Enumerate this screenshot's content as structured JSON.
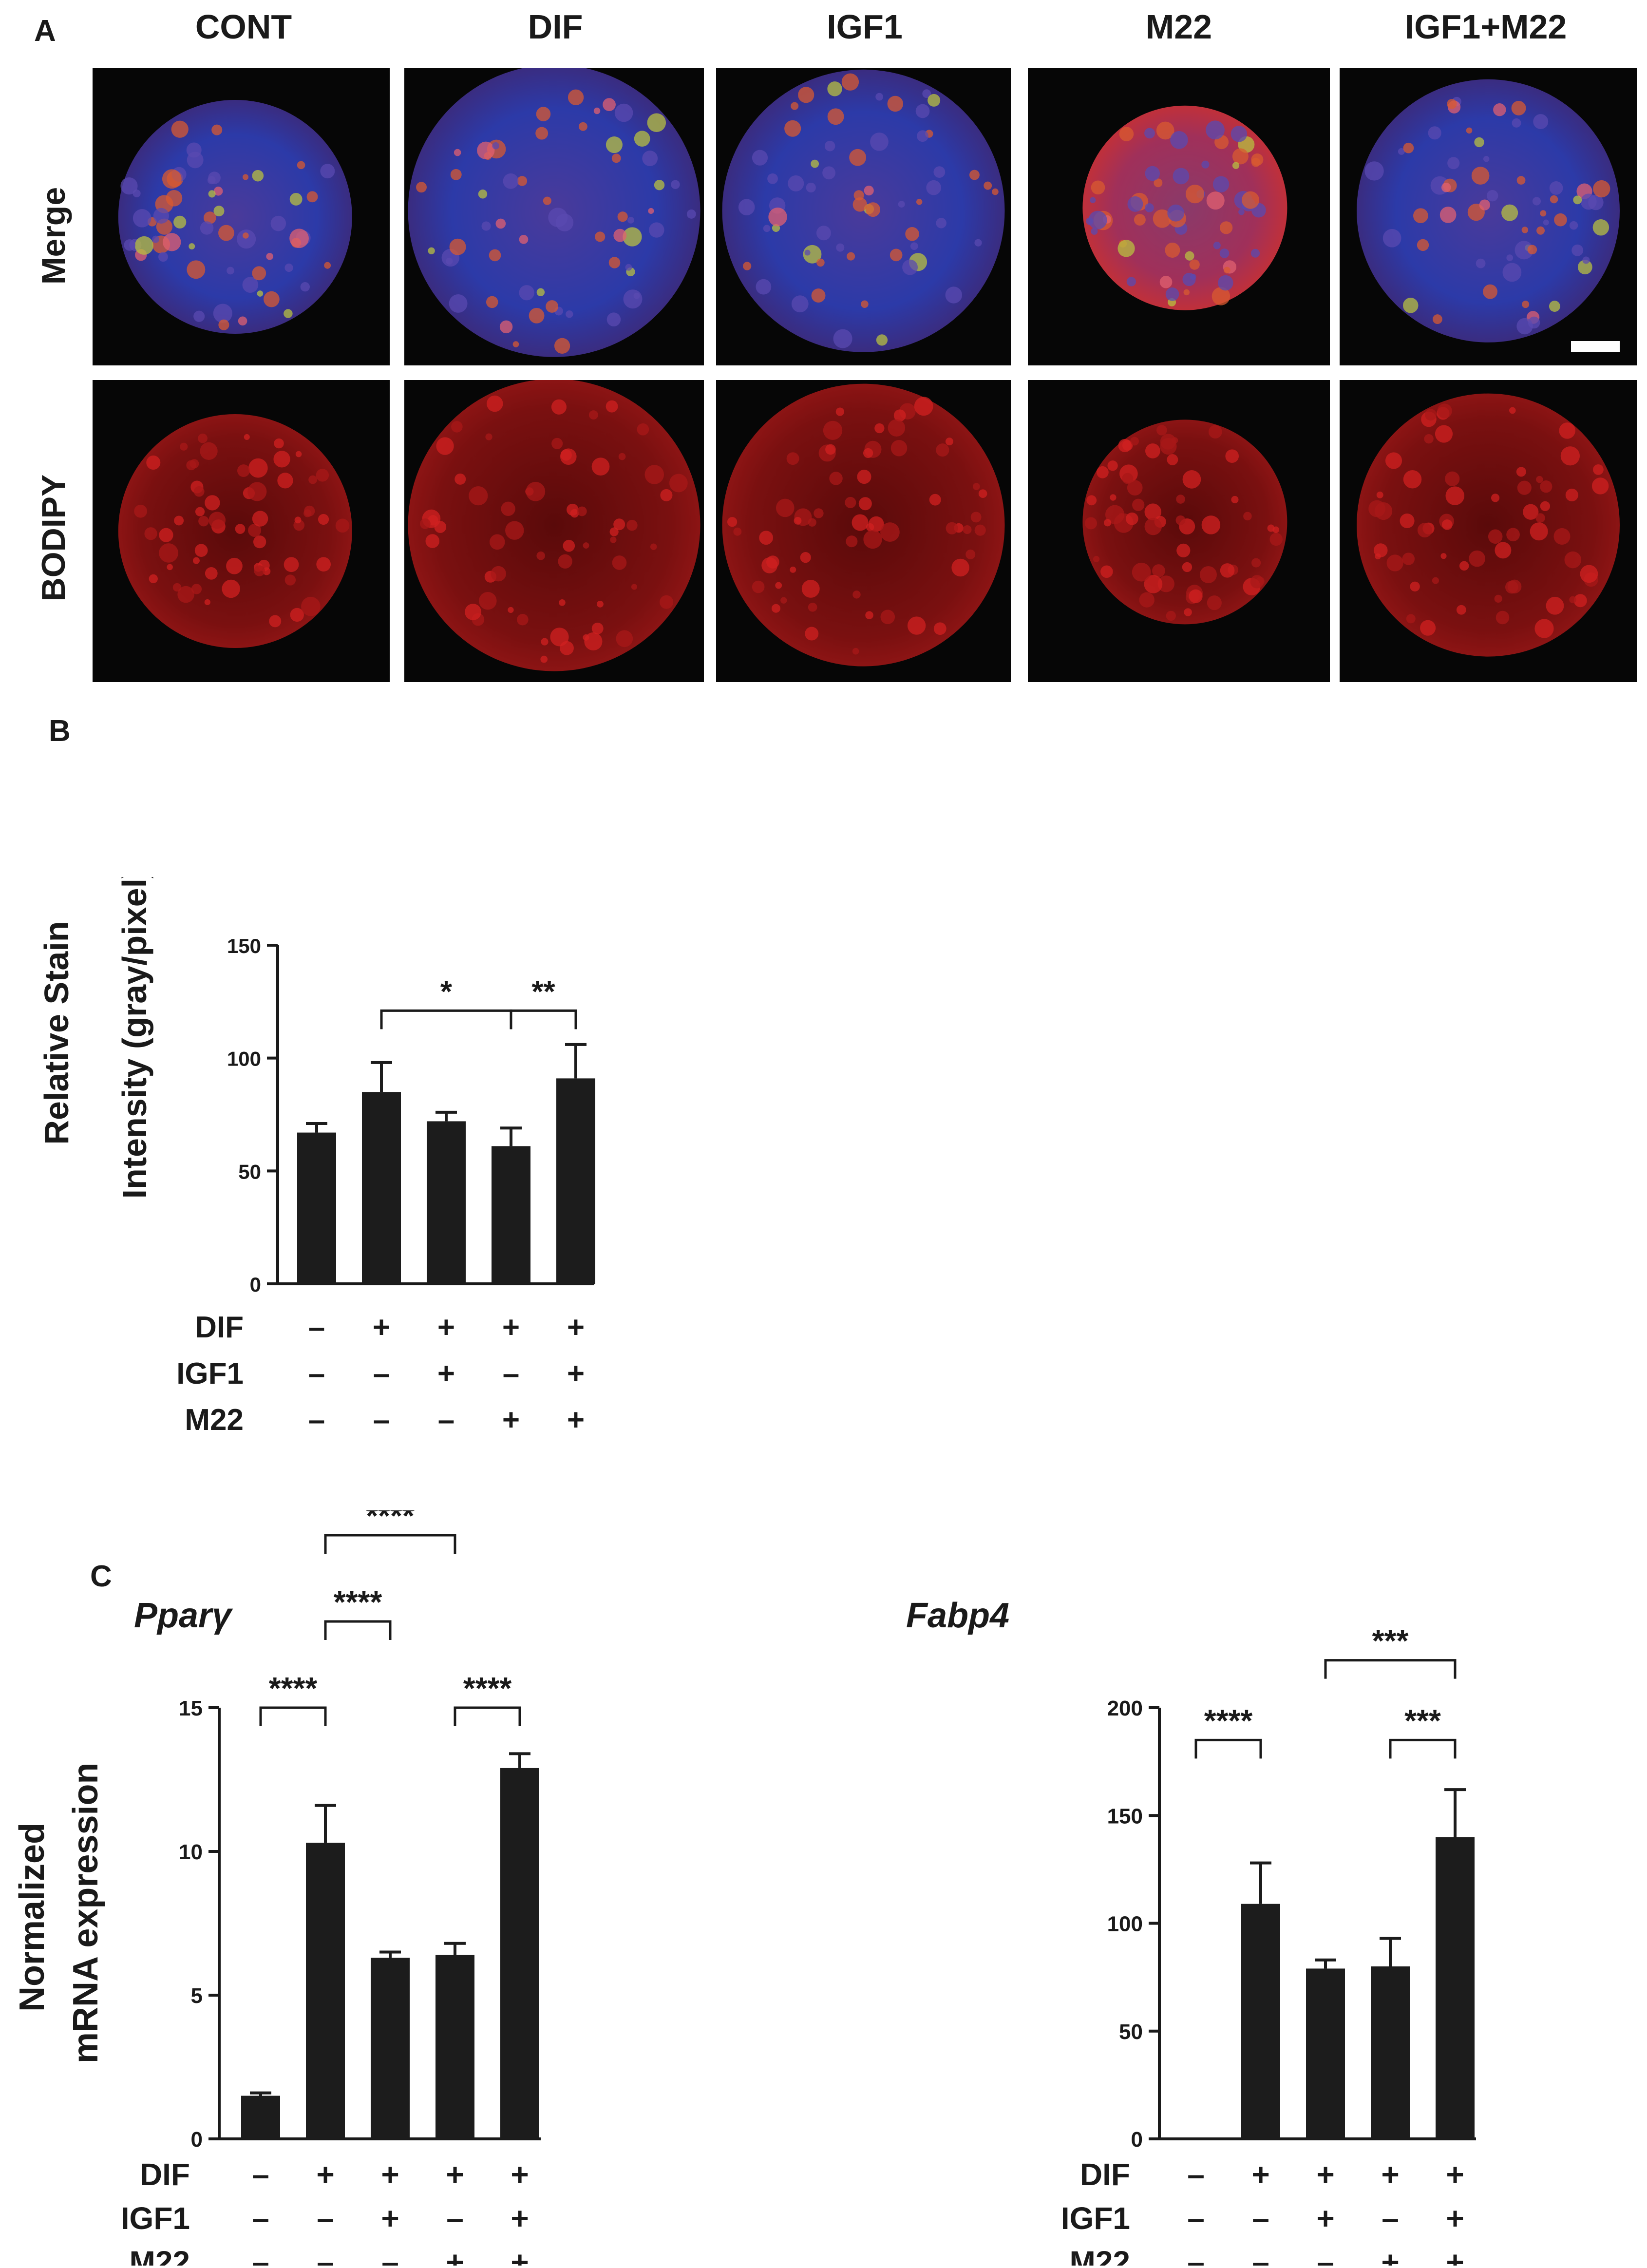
{
  "panelA": {
    "letter": "A",
    "columns": [
      "CONT",
      "DIF",
      "IGF1",
      "M22",
      "IGF1+M22"
    ],
    "rows": [
      "Merge",
      "BODIPY"
    ],
    "scale_bar": true
  },
  "panelB": {
    "letter": "B"
  },
  "panelC": {
    "letter": "C",
    "ylabel_line1": "Normalized",
    "ylabel_line2": "mRNA expression",
    "gene1": "Pparγ",
    "gene2": "Fabp4"
  },
  "chart_data": [
    {
      "id": "bodipy",
      "type": "bar",
      "title": "",
      "ylabel_line1": "Relative Stain",
      "ylabel_line2": "Intensity (gray/pixel)",
      "ylim": [
        0,
        150
      ],
      "yticks": [
        0,
        50,
        100,
        150
      ],
      "values": [
        67,
        85,
        72,
        61,
        91
      ],
      "errors": [
        4,
        13,
        4,
        8,
        15
      ],
      "conditions": [
        {
          "name": "DIF",
          "signs": [
            "–",
            "+",
            "+",
            "+",
            "+"
          ]
        },
        {
          "name": "IGF1",
          "signs": [
            "–",
            "–",
            "+",
            "–",
            "+"
          ]
        },
        {
          "name": "M22",
          "signs": [
            "–",
            "–",
            "–",
            "+",
            "+"
          ]
        }
      ],
      "significance": [
        {
          "from": 1,
          "to": 3,
          "label": "*",
          "level": 121
        },
        {
          "from": 3,
          "to": 4,
          "label": "**",
          "level": 121
        }
      ]
    },
    {
      "id": "ppar",
      "type": "bar",
      "title": "Pparγ",
      "ylim": [
        0,
        15
      ],
      "yticks": [
        0,
        5,
        10,
        15
      ],
      "values": [
        1.5,
        10.3,
        6.3,
        6.4,
        12.9
      ],
      "errors": [
        0.1,
        1.3,
        0.2,
        0.4,
        0.5
      ],
      "conditions": [
        {
          "name": "DIF",
          "signs": [
            "–",
            "+",
            "+",
            "+",
            "+"
          ]
        },
        {
          "name": "IGF1",
          "signs": [
            "–",
            "–",
            "+",
            "–",
            "+"
          ]
        },
        {
          "name": "M22",
          "signs": [
            "–",
            "–",
            "–",
            "+",
            "+"
          ]
        }
      ],
      "significance": [
        {
          "from": 0,
          "to": 1,
          "label": "****",
          "level": 15.0
        },
        {
          "from": 3,
          "to": 4,
          "label": "****",
          "level": 15.0
        },
        {
          "from": 1,
          "to": 2,
          "label": "****",
          "level": 18.0
        },
        {
          "from": 1,
          "to": 3,
          "label": "****",
          "level": 21.0
        },
        {
          "from": 2,
          "to": 4,
          "label": "****",
          "level": 24.0
        }
      ]
    },
    {
      "id": "fabp4",
      "type": "bar",
      "title": "Fabp4",
      "ylim": [
        0,
        200
      ],
      "yticks": [
        0,
        50,
        100,
        150,
        200
      ],
      "values": [
        0,
        109,
        79,
        80,
        140
      ],
      "errors": [
        0,
        19,
        4,
        13,
        22
      ],
      "conditions": [
        {
          "name": "DIF",
          "signs": [
            "–",
            "+",
            "+",
            "+",
            "+"
          ]
        },
        {
          "name": "IGF1",
          "signs": [
            "–",
            "–",
            "+",
            "–",
            "+"
          ]
        },
        {
          "name": "M22",
          "signs": [
            "–",
            "–",
            "–",
            "+",
            "+"
          ]
        }
      ],
      "significance": [
        {
          "from": 0,
          "to": 1,
          "label": "****",
          "level": 185
        },
        {
          "from": 3,
          "to": 4,
          "label": "***",
          "level": 185
        },
        {
          "from": 2,
          "to": 4,
          "label": "***",
          "level": 222
        }
      ]
    }
  ]
}
